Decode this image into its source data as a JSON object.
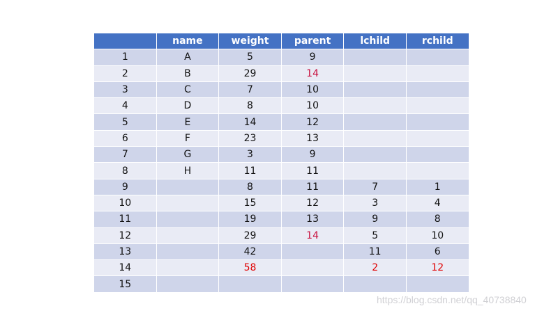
{
  "headers": [
    "",
    "name",
    "weight",
    "parent",
    "lchild",
    "rchild"
  ],
  "rows": [
    [
      "1",
      "A",
      "5",
      "9",
      "",
      ""
    ],
    [
      "2",
      "B",
      "29",
      "14",
      "",
      ""
    ],
    [
      "3",
      "C",
      "7",
      "10",
      "",
      ""
    ],
    [
      "4",
      "D",
      "8",
      "10",
      "",
      ""
    ],
    [
      "5",
      "E",
      "14",
      "12",
      "",
      ""
    ],
    [
      "6",
      "F",
      "23",
      "13",
      "",
      ""
    ],
    [
      "7",
      "G",
      "3",
      "9",
      "",
      ""
    ],
    [
      "8",
      "H",
      "11",
      "11",
      "",
      ""
    ],
    [
      "9",
      "",
      "8",
      "11",
      "7",
      "1"
    ],
    [
      "10",
      "",
      "15",
      "12",
      "3",
      "4"
    ],
    [
      "11",
      "",
      "19",
      "13",
      "9",
      "8"
    ],
    [
      "12",
      "",
      "29",
      "14",
      "5",
      "10"
    ],
    [
      "13",
      "",
      "42",
      "",
      "11",
      "6"
    ],
    [
      "14",
      "",
      "58",
      "",
      "2",
      "12"
    ],
    [
      "15",
      "",
      "",
      "",
      "",
      ""
    ]
  ],
  "highlights": {
    "crimson": [
      "1.3",
      "11.3"
    ],
    "red": [
      "13.2",
      "13.4",
      "13.5"
    ]
  },
  "colors": {
    "header": "#4472C4",
    "row_odd": "#CFD5EA",
    "row_even": "#E9EBF5",
    "crimson": "#C8103E",
    "red": "#E00000"
  },
  "watermark": "https://blog.csdn.net/qq_40738840"
}
